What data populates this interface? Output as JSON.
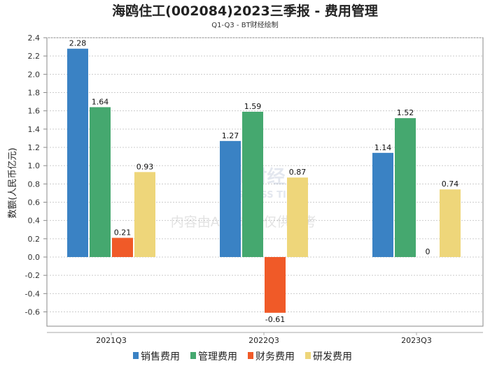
{
  "chart_data": {
    "type": "bar",
    "title": "海鸥住工(002084)2023三季报 - 费用管理",
    "subtitle": "Q1-Q3 - BT财经绘制",
    "xlabel": "",
    "ylabel": "数额(人民币亿元)",
    "categories": [
      "2021Q3",
      "2022Q3",
      "2023Q3"
    ],
    "series": [
      {
        "name": "销售费用",
        "color": "#3a82c4",
        "values": [
          2.28,
          1.27,
          1.14
        ]
      },
      {
        "name": "管理费用",
        "color": "#45a86f",
        "values": [
          1.64,
          1.59,
          1.52
        ]
      },
      {
        "name": "财务费用",
        "color": "#f05a28",
        "values": [
          0.21,
          -0.61,
          0
        ]
      },
      {
        "name": "研发费用",
        "color": "#eed67a",
        "values": [
          0.93,
          0.87,
          0.74
        ]
      }
    ],
    "ylim": [
      -0.76,
      2.4
    ],
    "yticks": [
      2.4,
      2.2,
      2.0,
      1.8,
      1.6,
      1.4,
      1.2,
      1.0,
      0.8,
      0.6,
      0.4,
      0.2,
      0.0,
      -0.2,
      -0.4,
      -0.6
    ],
    "ytick_labels": [
      "2.4",
      "2.2",
      "2.0",
      "1.8",
      "1.6",
      "1.4",
      "1.2",
      "1.0",
      "0.8",
      "0.6",
      "0.4",
      "0.2",
      "0.0",
      "-0.2",
      "-0.4",
      "-0.6"
    ],
    "grid": true,
    "legend": "bottom-center"
  },
  "watermark": {
    "brand": "BT财经",
    "brand_en": "BUSINESS TIMES",
    "notice": "内容由AI生成，仅供参考"
  }
}
